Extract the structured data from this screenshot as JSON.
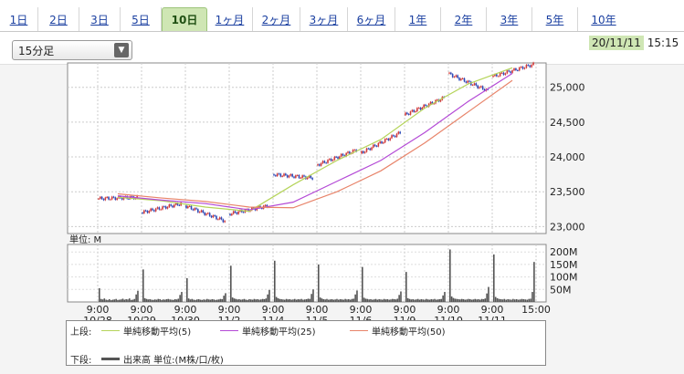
{
  "tabs": [
    {
      "label": "1日",
      "active": false
    },
    {
      "label": "2日",
      "active": false
    },
    {
      "label": "3日",
      "active": false
    },
    {
      "label": "5日",
      "active": false
    },
    {
      "label": "10日",
      "active": true
    },
    {
      "label": "1ヶ月",
      "active": false
    },
    {
      "label": "2ヶ月",
      "active": false
    },
    {
      "label": "3ヶ月",
      "active": false
    },
    {
      "label": "6ヶ月",
      "active": false
    },
    {
      "label": "1年",
      "active": false
    },
    {
      "label": "2年",
      "active": false
    },
    {
      "label": "3年",
      "active": false
    },
    {
      "label": "5年",
      "active": false
    },
    {
      "label": "10年",
      "active": false
    }
  ],
  "interval_select": {
    "value": "15分足"
  },
  "timestamp": {
    "date": "20/11/11",
    "time": "15:15"
  },
  "colors": {
    "tab_active_bg": "#cfe6b4",
    "ma5": "#b5d45a",
    "ma25": "#b44ad6",
    "ma50": "#e8846a",
    "volume": "#555555",
    "candle_up": "#d23a3a",
    "candle_down": "#2c49b8"
  },
  "chart_data": [
    {
      "type": "candlestick",
      "ylim": [
        22900,
        25350
      ],
      "yticks": [
        "25,000",
        "24,500",
        "24,000",
        "23,500",
        "23,000"
      ],
      "ytick_values": [
        25000,
        24500,
        24000,
        23500,
        23000
      ],
      "x_session_labels": [
        {
          "time": "9:00",
          "date": "10/28"
        },
        {
          "time": "9:00",
          "date": "10/29"
        },
        {
          "time": "9:00",
          "date": "10/30"
        },
        {
          "time": "9:00",
          "date": "11/2"
        },
        {
          "time": "9:00",
          "date": "11/4"
        },
        {
          "time": "9:00",
          "date": "11/5"
        },
        {
          "time": "9:00",
          "date": "11/6"
        },
        {
          "time": "9:00",
          "date": "11/9"
        },
        {
          "time": "9:00",
          "date": "11/10"
        },
        {
          "time": "9:00",
          "date": "11/11"
        },
        {
          "time": "15:00",
          "date": ""
        }
      ],
      "sessions": [
        {
          "date": "10/28",
          "open": 23400,
          "close": 23420
        },
        {
          "date": "10/29",
          "open": 23200,
          "close": 23330
        },
        {
          "date": "10/30",
          "open": 23300,
          "close": 23080
        },
        {
          "date": "11/2",
          "open": 23180,
          "close": 23300
        },
        {
          "date": "11/4",
          "open": 23750,
          "close": 23700
        },
        {
          "date": "11/5",
          "open": 23880,
          "close": 24100
        },
        {
          "date": "11/6",
          "open": 24050,
          "close": 24350
        },
        {
          "date": "11/9",
          "open": 24600,
          "close": 24850
        },
        {
          "date": "11/10",
          "open": 25200,
          "close": 24950
        },
        {
          "date": "11/11",
          "open": 25150,
          "close": 25330
        }
      ],
      "series": [
        {
          "name": "単純移動平均(5)",
          "values": [
            23420,
            23370,
            23280,
            23220,
            23600,
            23950,
            24250,
            24700,
            25050,
            25280
          ]
        },
        {
          "name": "単純移動平均(25)",
          "values": [
            23440,
            23380,
            23330,
            23240,
            23350,
            23650,
            23950,
            24350,
            24800,
            25200
          ]
        },
        {
          "name": "単純移動平均(50)",
          "values": [
            23470,
            23410,
            23360,
            23280,
            23270,
            23500,
            23800,
            24200,
            24650,
            25100
          ]
        }
      ]
    },
    {
      "type": "bar",
      "label": "単位: M",
      "ylim": [
        0,
        230
      ],
      "yticks": [
        "200M",
        "150M",
        "100M",
        "50M"
      ],
      "ytick_values": [
        200,
        150,
        100,
        50
      ],
      "session_volumes": [
        [
          55,
          12,
          10,
          14,
          9,
          8,
          11,
          7,
          9,
          10,
          12,
          8,
          9,
          10,
          13,
          9,
          11,
          10,
          14,
          8,
          9,
          12,
          30,
          45
        ],
        [
          130,
          15,
          12,
          10,
          11,
          9,
          8,
          10,
          9,
          12,
          11,
          8,
          10,
          9,
          11,
          12,
          10,
          9,
          8,
          11,
          10,
          13,
          28,
          40
        ],
        [
          95,
          14,
          10,
          12,
          9,
          8,
          10,
          11,
          9,
          8,
          10,
          9,
          12,
          10,
          9,
          11,
          10,
          8,
          9,
          10,
          12,
          11,
          25,
          35
        ],
        [
          145,
          18,
          14,
          12,
          10,
          11,
          9,
          10,
          12,
          9,
          8,
          11,
          10,
          9,
          12,
          10,
          11,
          9,
          10,
          12,
          11,
          14,
          30,
          48
        ],
        [
          165,
          20,
          15,
          12,
          11,
          10,
          9,
          12,
          10,
          11,
          9,
          10,
          12,
          9,
          11,
          10,
          12,
          9,
          10,
          11,
          13,
          12,
          32,
          50
        ],
        [
          150,
          18,
          14,
          11,
          10,
          12,
          9,
          10,
          11,
          9,
          10,
          12,
          9,
          11,
          10,
          9,
          12,
          10,
          11,
          9,
          12,
          13,
          30,
          46
        ],
        [
          140,
          17,
          13,
          12,
          10,
          11,
          9,
          10,
          12,
          9,
          11,
          10,
          9,
          12,
          10,
          11,
          9,
          10,
          12,
          11,
          10,
          13,
          28,
          42
        ],
        [
          120,
          15,
          12,
          10,
          11,
          9,
          10,
          12,
          9,
          11,
          10,
          9,
          12,
          10,
          9,
          11,
          10,
          12,
          9,
          10,
          11,
          12,
          26,
          40
        ],
        [
          210,
          22,
          16,
          13,
          12,
          11,
          10,
          12,
          11,
          9,
          10,
          12,
          11,
          9,
          10,
          12,
          10,
          11,
          9,
          12,
          11,
          14,
          34,
          60
        ],
        [
          190,
          20,
          15,
          12,
          11,
          10,
          12,
          9,
          11,
          10,
          9,
          12,
          10,
          11,
          9,
          10,
          12,
          11,
          10,
          9,
          12,
          13,
          40,
          160
        ]
      ]
    }
  ],
  "legend": {
    "upper_label": "上段:",
    "lower_label": "下段:",
    "items": [
      {
        "label": "単純移動平均(5)",
        "color": "#b5d45a"
      },
      {
        "label": "単純移動平均(25)",
        "color": "#b44ad6"
      },
      {
        "label": "単純移動平均(50)",
        "color": "#e8846a"
      }
    ],
    "volume_label": "出来高 単位:(M株/口/枚)"
  }
}
